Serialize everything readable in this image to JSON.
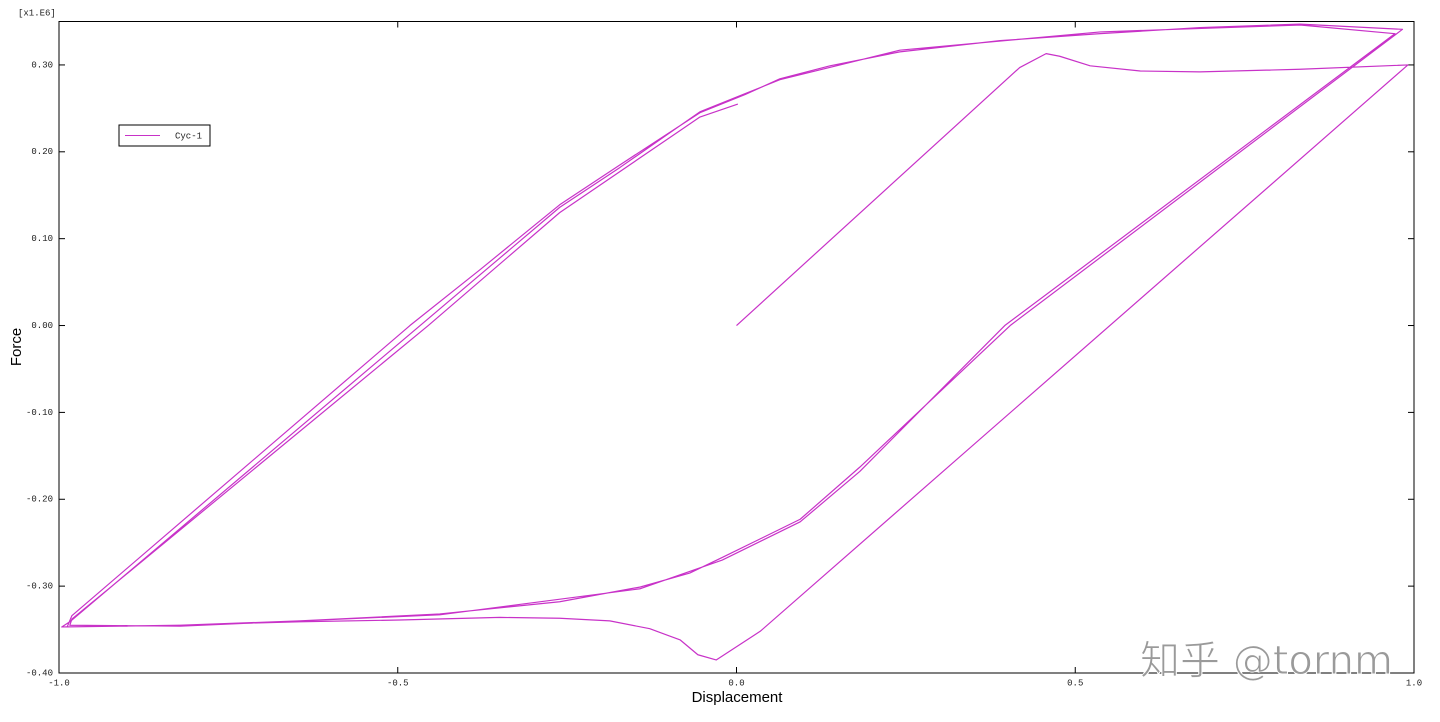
{
  "chart_data": {
    "type": "line",
    "multiplier": "[x1.E6]",
    "x_label": "Displacement",
    "y_label": "Force",
    "watermark": "知乎 @tornm",
    "xlim": [
      -1.0,
      1.0
    ],
    "ylim": [
      -0.4,
      0.35
    ],
    "xticks": [
      {
        "value": -1.0,
        "label": "-1.0"
      },
      {
        "value": -0.5,
        "label": "-0.5"
      },
      {
        "value": 0,
        "label": "0.0"
      },
      {
        "value": 0.5,
        "label": "0.5"
      },
      {
        "value": 1.0,
        "label": "1.0"
      }
    ],
    "yticks": [
      {
        "value": -0.4,
        "label": "-0.40"
      },
      {
        "value": -0.3,
        "label": "-0.30"
      },
      {
        "value": -0.2,
        "label": "-0.20"
      },
      {
        "value": -0.1,
        "label": "-0.10"
      },
      {
        "value": 0,
        "label": "0.00"
      },
      {
        "value": 0.1,
        "label": "0.10"
      },
      {
        "value": 0.2,
        "label": "0.20"
      },
      {
        "value": 0.3,
        "label": "0.30"
      }
    ],
    "legend": "top-left",
    "series": [
      {
        "name": "Cyc-1",
        "color": "#c832c8",
        "x": [
          0.0,
          0.418,
          0.457,
          0.477,
          0.522,
          0.596,
          0.684,
          0.832,
          0.991,
          0.035,
          -0.03,
          -0.057,
          -0.083,
          -0.128,
          -0.187,
          -0.261,
          -0.349,
          -0.497,
          -0.644,
          -0.821,
          -0.988,
          -0.981,
          -0.482,
          -0.379,
          -0.261,
          -0.172,
          -0.054,
          0.013,
          0.064,
          0.138,
          0.241,
          0.389,
          0.537,
          0.684,
          0.832,
          0.983,
          0.404,
          0.182,
          0.094,
          -0.021,
          -0.069,
          -0.142,
          -0.261,
          -0.438,
          -0.644,
          -0.821,
          -0.996,
          -0.984,
          -0.467,
          -0.364,
          -0.261,
          -0.172,
          -0.054,
          0.013,
          0.064,
          0.241,
          0.537,
          0.832,
          0.972,
          0.396,
          0.182,
          0.094,
          -0.021,
          -0.142,
          -0.438,
          -0.821,
          -0.984,
          -0.981,
          -0.455,
          -0.261,
          -0.054,
          0.002
        ],
        "values": [
          0.0,
          0.297,
          0.313,
          0.31,
          0.299,
          0.293,
          0.292,
          0.295,
          0.3,
          -0.352,
          -0.385,
          -0.379,
          -0.362,
          -0.349,
          -0.34,
          -0.337,
          -0.336,
          -0.339,
          -0.341,
          -0.345,
          -0.347,
          -0.334,
          0.0,
          0.064,
          0.139,
          0.185,
          0.245,
          0.266,
          0.284,
          0.299,
          0.315,
          0.328,
          0.336,
          0.343,
          0.347,
          0.341,
          0.0,
          -0.163,
          -0.223,
          -0.267,
          -0.285,
          -0.301,
          -0.318,
          -0.332,
          -0.34,
          -0.345,
          -0.347,
          -0.341,
          0.0,
          0.068,
          0.136,
          0.182,
          0.246,
          0.267,
          0.283,
          0.317,
          0.338,
          0.346,
          0.336,
          0.0,
          -0.168,
          -0.226,
          -0.27,
          -0.303,
          -0.333,
          -0.346,
          -0.345,
          -0.338,
          0.0,
          0.13,
          0.24,
          0.255
        ]
      }
    ]
  }
}
